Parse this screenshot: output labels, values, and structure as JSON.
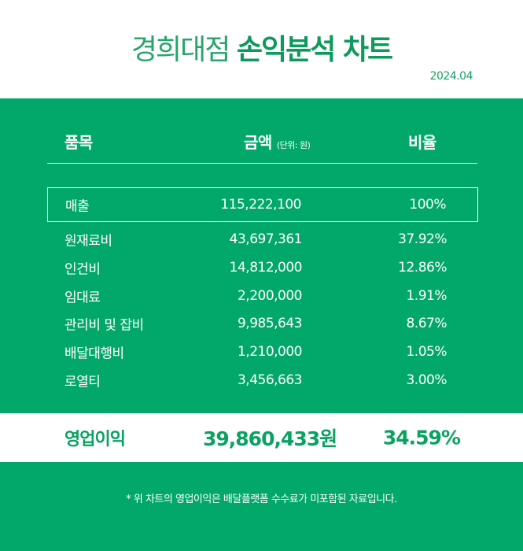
{
  "title": {
    "light": "경희대점",
    "bold": "손익분석 차트"
  },
  "date": "2024.04",
  "table": {
    "headers": {
      "item": "품목",
      "amount": "금액",
      "unit": "(단위: 원)",
      "ratio": "비율"
    },
    "rows": [
      {
        "name": "매출",
        "amount": "115,222,100",
        "ratio": "100%"
      },
      {
        "name": "원재료비",
        "amount": "43,697,361",
        "ratio": "37.92%"
      },
      {
        "name": "인건비",
        "amount": "14,812,000",
        "ratio": "12.86%"
      },
      {
        "name": "임대료",
        "amount": "2,200,000",
        "ratio": "1.91%"
      },
      {
        "name": "관리비 및 잡비",
        "amount": "9,985,643",
        "ratio": "8.67%"
      },
      {
        "name": "배달대행비",
        "amount": "1,210,000",
        "ratio": "1.05%"
      },
      {
        "name": "로열티",
        "amount": "3,456,663",
        "ratio": "3.00%"
      }
    ],
    "total": {
      "name": "영업이익",
      "amount": "39,860,433원",
      "ratio": "34.59%"
    }
  },
  "footnote": "* 위 차트의 영업이익은 배달플랫폼 수수료가 미포함된 자료입니다.",
  "colors": {
    "brand_green": "#02a86a",
    "accent_green": "#09a261",
    "white": "#ffffff"
  }
}
